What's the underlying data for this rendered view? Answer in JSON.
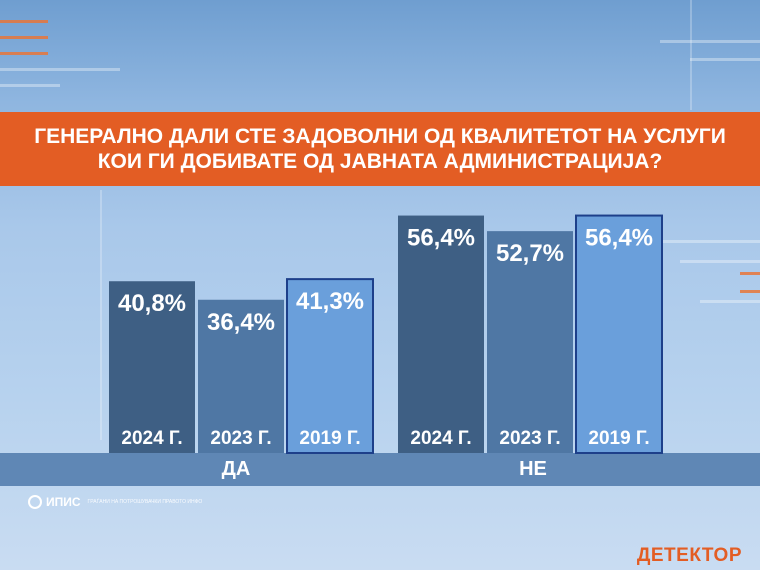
{
  "title": "ГЕНЕРАЛНО ДАЛИ СТЕ ЗАДОВОЛНИ ОД КВАЛИТЕТОТ НА УСЛУГИ КОИ ГИ ДОБИВАТЕ ОД ЈАВНАТА АДМИНИСТРАЦИЈА?",
  "groups": [
    "ДА",
    "НЕ"
  ],
  "source_logo": {
    "name": "ИПИС",
    "tagline": "ГРАЃАНИ НА ПОТРОШУВАЧКИ ПРАВОТО ИНФО"
  },
  "brand": "ДЕТЕКТОР",
  "colors": {
    "title_band": "#e35d24",
    "bar_2024": "#3e5f84",
    "bar_2023": "#4f77a4",
    "bar_2019": "#6a9fdb",
    "bar_2019_border": "#1d3f8a",
    "group_band": "#5f87b5"
  },
  "chart_data": {
    "type": "bar",
    "title": "ГЕНЕРАЛНО ДАЛИ СТЕ ЗАДОВОЛНИ ОД КВАЛИТЕТОТ НА УСЛУГИ КОИ ГИ ДОБИВАТЕ ОД ЈАВНАТА АДМИНИСТРАЦИЈА?",
    "categories": [
      "ДА",
      "НЕ"
    ],
    "series": [
      {
        "name": "2024 Г.",
        "values": [
          40.8,
          56.4
        ],
        "labels": [
          "40,8%",
          "56,4%"
        ]
      },
      {
        "name": "2023 Г.",
        "values": [
          36.4,
          52.7
        ],
        "labels": [
          "36,4%",
          "52,7%"
        ]
      },
      {
        "name": "2019 Г.",
        "values": [
          41.3,
          56.4
        ],
        "labels": [
          "41,3%",
          "56,4%"
        ]
      }
    ],
    "ylim": [
      0,
      60
    ],
    "value_unit": "%",
    "legend": "none",
    "grid": false
  }
}
